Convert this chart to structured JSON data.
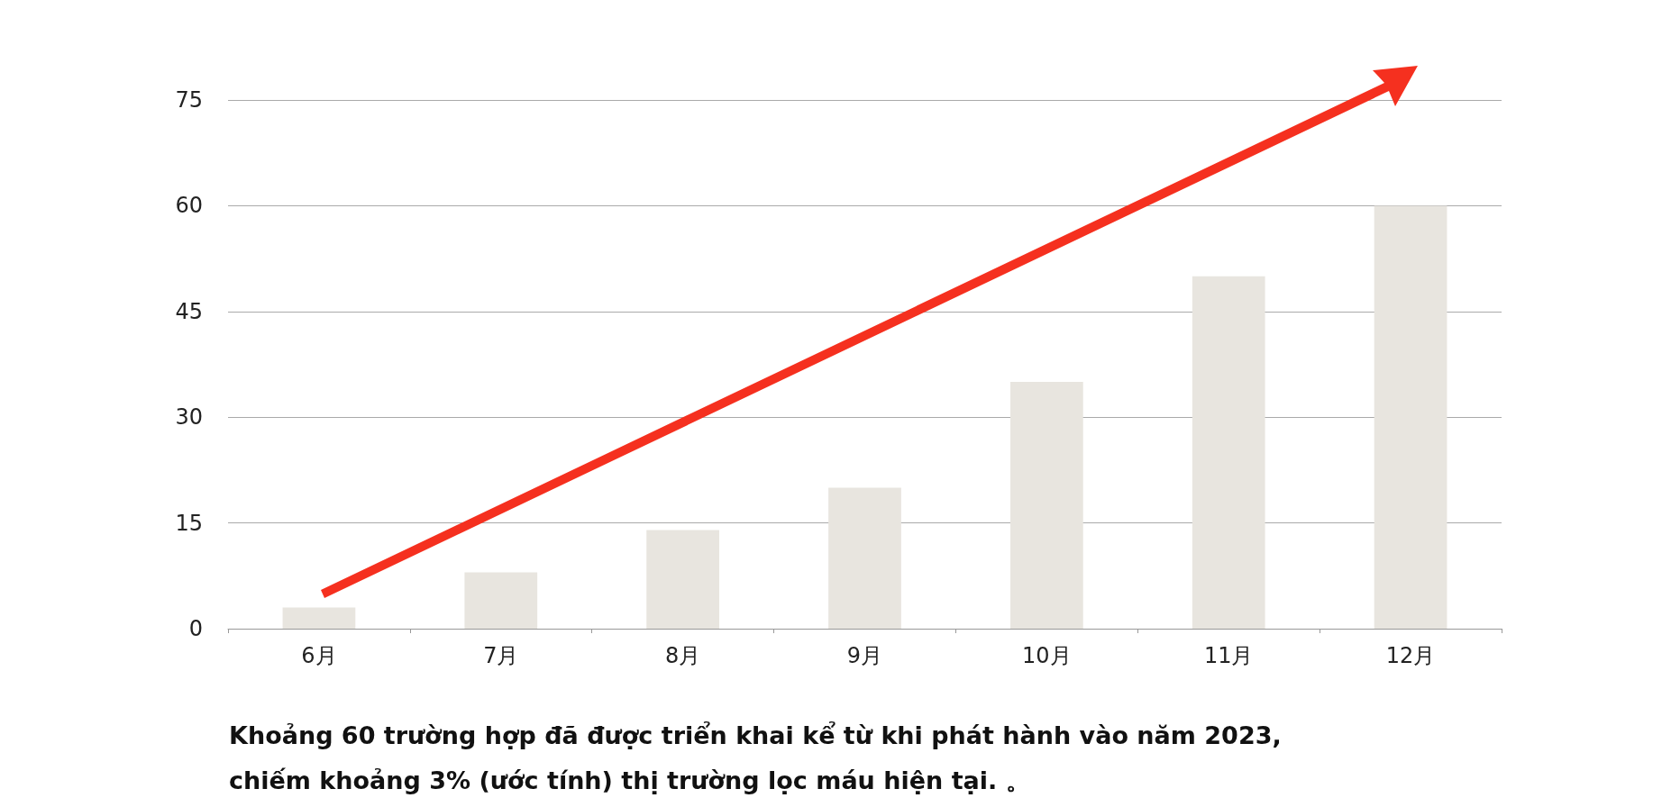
{
  "chart_data": {
    "type": "bar",
    "categories": [
      "6月",
      "7月",
      "8月",
      "9月",
      "10月",
      "11月",
      "12月"
    ],
    "values": [
      3,
      8,
      14,
      20,
      35,
      50,
      60
    ],
    "color": "#e8e5df",
    "ylim": [
      0,
      75
    ],
    "yticks": [
      0,
      15,
      30,
      45,
      60,
      75
    ],
    "grid": "y",
    "annotations": [
      "Khoảng 60 trường hợp đã được triển khai kể từ khi phát hành vào năm 2023,",
      "chiếm khoảng 3% (ước tính) thị trường lọc máu hiện tại. 。"
    ]
  }
}
